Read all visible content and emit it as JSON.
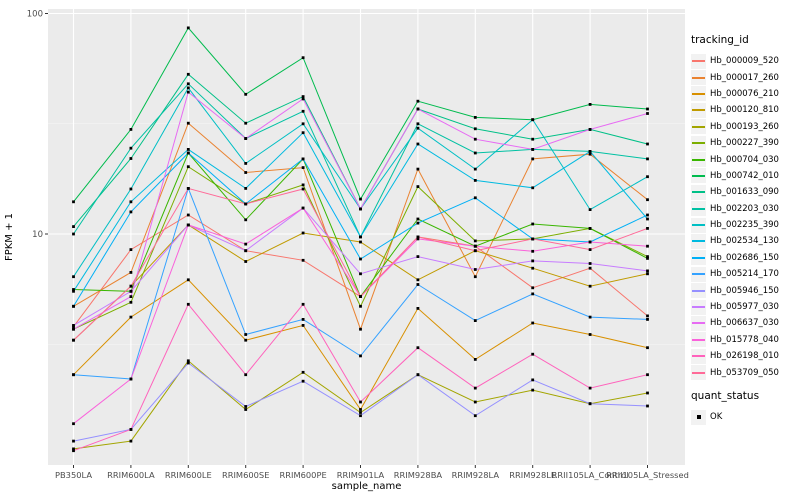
{
  "chart_data": {
    "type": "line",
    "xlabel": "sample_name",
    "ylabel": "FPKM + 1",
    "y_scale": "log10",
    "y_ticks": [
      10,
      100
    ],
    "y_minor_breaks": [
      3.162,
      31.62
    ],
    "ylim": [
      0.9,
      105
    ],
    "grid": "on",
    "legend_position": "right",
    "legend_title": "tracking_id",
    "quant_legend_title": "quant_status",
    "quant_status_label": "OK",
    "categories": [
      "PB350LA",
      "RRIM600LA",
      "RRIM600LE",
      "RRIM600SE",
      "RRIM600PE",
      "RRIM901LA",
      "RRIM928BA",
      "RRIM928LA",
      "RRIM928LE",
      "RRII105LA_Control",
      "RRII105LA_Stressed"
    ],
    "series": [
      {
        "name": "Hb_000009_520",
        "color": "#F8766D",
        "values": [
          3.8,
          8.5,
          12.2,
          8.4,
          7.6,
          5.2,
          9.7,
          8.8,
          5.7,
          7.0,
          4.25
        ]
      },
      {
        "name": "Hb_000017_260",
        "color": "#EA8331",
        "values": [
          4.7,
          6.7,
          31.8,
          19.0,
          20.0,
          3.7,
          19.7,
          6.4,
          21.9,
          23.0,
          14.3
        ]
      },
      {
        "name": "Hb_000076_210",
        "color": "#D89000",
        "values": [
          2.3,
          4.2,
          6.2,
          3.3,
          3.85,
          1.6,
          4.6,
          2.7,
          3.95,
          3.5,
          3.05
        ]
      },
      {
        "name": "Hb_000120_810",
        "color": "#C09B00",
        "values": [
          3.3,
          5.8,
          11.0,
          7.5,
          10.1,
          9.2,
          6.2,
          8.4,
          7.0,
          5.8,
          6.6
        ]
      },
      {
        "name": "Hb_000193_260",
        "color": "#A3A500",
        "values": [
          1.06,
          1.15,
          2.66,
          1.6,
          2.36,
          1.55,
          2.3,
          1.73,
          1.96,
          1.7,
          1.9
        ]
      },
      {
        "name": "Hb_000227_390",
        "color": "#7CAE00",
        "values": [
          3.7,
          4.9,
          20.2,
          13.7,
          16.7,
          4.7,
          16.4,
          9.3,
          9.5,
          10.6,
          7.9
        ]
      },
      {
        "name": "Hb_000704_030",
        "color": "#39B600",
        "values": [
          5.6,
          5.5,
          23.3,
          11.6,
          21.9,
          5.2,
          11.7,
          8.8,
          11.1,
          10.6,
          7.75
        ]
      },
      {
        "name": "Hb_000742_010",
        "color": "#00BB4E",
        "values": [
          14.0,
          29.8,
          86.0,
          43.0,
          63.0,
          14.4,
          40.0,
          33.8,
          33.0,
          38.7,
          36.9
        ]
      },
      {
        "name": "Hb_001633_090",
        "color": "#00C087",
        "values": [
          10.8,
          22.0,
          53.0,
          31.8,
          42.0,
          13.0,
          36.9,
          30.0,
          26.9,
          29.8,
          25.6
        ]
      },
      {
        "name": "Hb_002203_030",
        "color": "#00C1A3",
        "values": [
          10.0,
          24.5,
          48.0,
          27.1,
          36.0,
          9.7,
          31.6,
          23.3,
          24.2,
          23.7,
          21.9
        ]
      },
      {
        "name": "Hb_002235_390",
        "color": "#00BFC4",
        "values": [
          6.4,
          16.0,
          46.0,
          20.9,
          31.6,
          13.0,
          30.2,
          19.7,
          33.0,
          12.9,
          18.2
        ]
      },
      {
        "name": "Hb_002534_130",
        "color": "#00BAE0",
        "values": [
          5.5,
          14.0,
          24.2,
          16.1,
          28.8,
          9.7,
          25.6,
          17.5,
          16.2,
          23.7,
          11.7
        ]
      },
      {
        "name": "Hb_002686_150",
        "color": "#00B0F6",
        "values": [
          4.7,
          12.6,
          23.3,
          13.7,
          21.9,
          7.7,
          11.2,
          14.6,
          9.5,
          9.2,
          12.2
        ]
      },
      {
        "name": "Hb_005214_170",
        "color": "#35A2FF",
        "values": [
          2.3,
          2.2,
          16.1,
          3.5,
          4.1,
          2.8,
          5.9,
          4.05,
          5.35,
          4.2,
          4.1
        ]
      },
      {
        "name": "Hb_005946_150",
        "color": "#9590FF",
        "values": [
          1.15,
          1.3,
          2.6,
          1.65,
          2.15,
          1.5,
          2.3,
          1.5,
          2.18,
          1.7,
          1.66
        ]
      },
      {
        "name": "Hb_005977_030",
        "color": "#C77CFF",
        "values": [
          3.85,
          5.5,
          11.0,
          8.4,
          13.1,
          6.6,
          7.9,
          6.9,
          7.55,
          7.35,
          6.8
        ]
      },
      {
        "name": "Hb_006637_030",
        "color": "#E76BF3",
        "values": [
          3.7,
          5.2,
          44.0,
          27.1,
          41.0,
          13.0,
          36.9,
          26.9,
          24.2,
          29.8,
          35.2
        ]
      },
      {
        "name": "Hb_015778_040",
        "color": "#FA62DB",
        "values": [
          1.38,
          2.2,
          11.0,
          9.0,
          13.1,
          5.2,
          9.5,
          8.8,
          8.35,
          9.2,
          8.8
        ]
      },
      {
        "name": "Hb_026198_010",
        "color": "#FF62BC",
        "values": [
          1.04,
          1.3,
          4.8,
          2.3,
          4.8,
          1.73,
          3.05,
          2.0,
          2.85,
          2.0,
          2.3
        ]
      },
      {
        "name": "Hb_053709_050",
        "color": "#FF6A98",
        "values": [
          3.3,
          5.8,
          16.1,
          13.7,
          16.0,
          5.2,
          9.7,
          8.4,
          9.5,
          8.5,
          10.6
        ]
      }
    ]
  },
  "style": {
    "panel_bg": "#EBEBEB",
    "grid_major": "#FFFFFF",
    "grid_minor": "#F7F7F7",
    "axis_text": "#4D4D4D",
    "tick_color": "#333333",
    "point_color": "#000000"
  }
}
